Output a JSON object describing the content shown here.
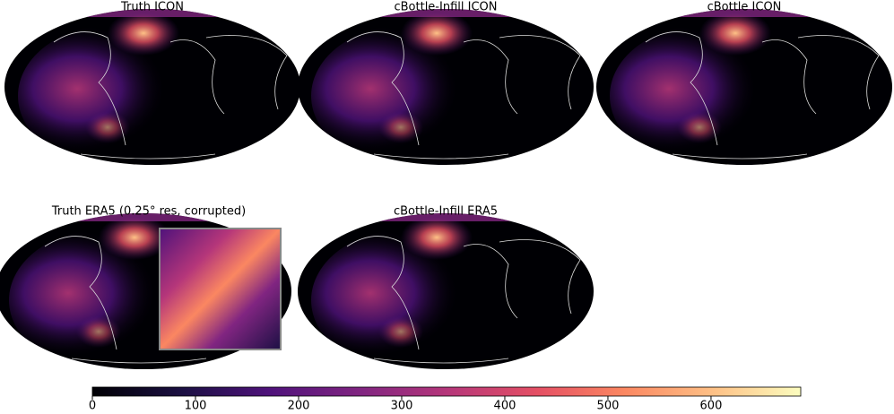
{
  "chart_data": {
    "type": "colorbar",
    "panels": [
      "Truth ICON",
      "cBottle-Infill ICON",
      "cBottle ICON",
      "Truth ERA5 (0.25° res, corrupted)",
      "cBottle-Infill ERA5"
    ],
    "colormap": "magma",
    "clim": [
      0,
      687
    ],
    "ticks": [
      0,
      100,
      200,
      300,
      400,
      500,
      600
    ]
  }
}
